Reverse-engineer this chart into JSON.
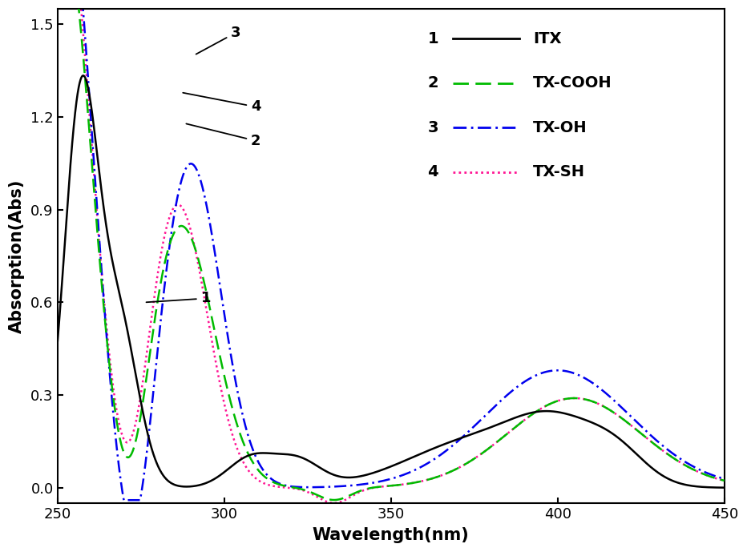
{
  "xlabel": "Wavelength(nm)",
  "ylabel": "Absorption(Abs)",
  "xlim": [
    250,
    450
  ],
  "ylim": [
    -0.05,
    1.55
  ],
  "xticks": [
    250,
    300,
    350,
    400,
    450
  ],
  "yticks": [
    0.0,
    0.3,
    0.6,
    0.9,
    1.2,
    1.5
  ],
  "line1_color": "#000000",
  "line2_color": "#00bb00",
  "line3_color": "#0000ee",
  "line4_color": "#ff1493",
  "background_color": "#ffffff",
  "legend_items": [
    {
      "num": "1",
      "label": "ITX"
    },
    {
      "num": "2",
      "label": "TX-COOH"
    },
    {
      "num": "3",
      "label": "TX-OH"
    },
    {
      "num": "4",
      "label": "TX-SH"
    }
  ]
}
